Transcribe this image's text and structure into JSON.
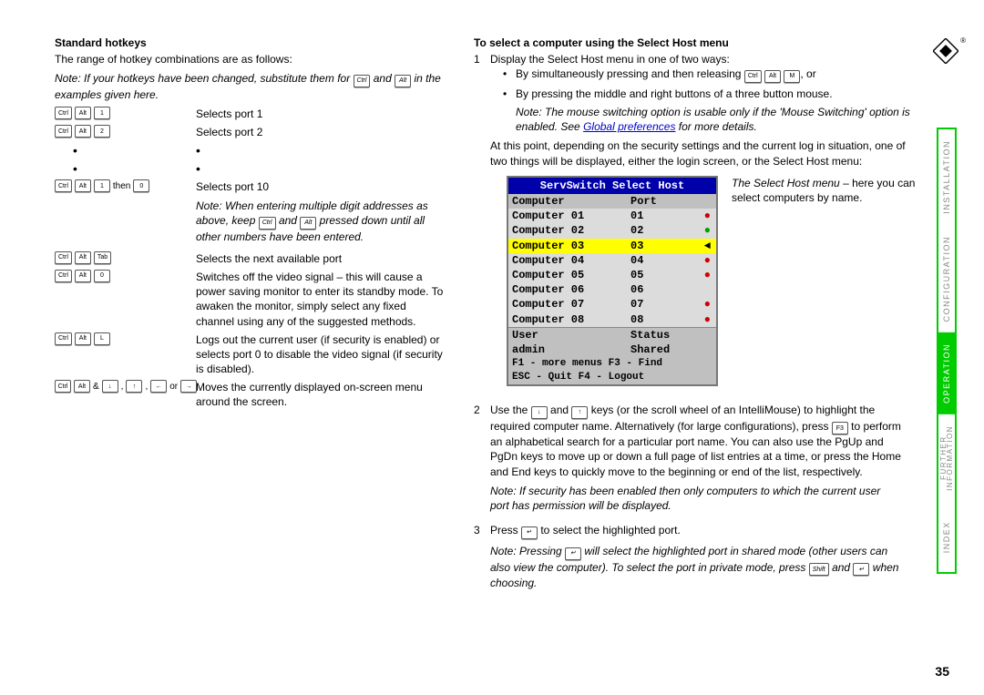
{
  "page_number": "35",
  "sidebar": {
    "tabs": [
      "INSTALLATION",
      "CONFIGURATION",
      "OPERATION",
      "FURTHER INFORMATION",
      "INDEX"
    ],
    "active_index": 2,
    "border_color": "#00cc00",
    "active_bg": "#00cc00"
  },
  "logo": {
    "registered": "®"
  },
  "left": {
    "heading": "Standard hotkeys",
    "intro": "The range of hotkey combinations are as follows:",
    "note1_a": "Note: If your hotkeys have been changed, substitute them for ",
    "note1_b": " and ",
    "note1_c": " in the examples given here.",
    "rows": [
      {
        "keys": [
          "Ctrl",
          "Alt",
          "1"
        ],
        "desc": "Selects port 1"
      },
      {
        "keys": [
          "Ctrl",
          "Alt",
          "2"
        ],
        "desc": "Selects port 2"
      }
    ],
    "row10_keys_a": [
      "Ctrl",
      "Alt",
      "1"
    ],
    "row10_then": " then ",
    "row10_keys_b": [
      "0"
    ],
    "row10_desc": "Selects port 10",
    "multi_note": "Note: When entering multiple digit addresses as above, keep Ctrl and Alt pressed down until all other numbers have been entered.",
    "row_tab": {
      "keys": [
        "Ctrl",
        "Alt",
        "Tab"
      ],
      "desc": "Selects the next available port"
    },
    "row_0": {
      "keys": [
        "Ctrl",
        "Alt",
        "0"
      ],
      "desc": "Switches off the video signal – this will cause a power saving monitor to enter its standby mode. To awaken the monitor, simply select any fixed channel using any of the suggested methods."
    },
    "row_L": {
      "keys": [
        "Ctrl",
        "Alt",
        "L"
      ],
      "desc": "Logs out the current user (if security is enabled) or selects port 0 to disable the video signal (if security is disabled)."
    },
    "row_arrows_prefix_a": [
      "Ctrl",
      "Alt"
    ],
    "row_arrows_amp": " & ",
    "row_arrows_keys": [
      "↓",
      "↑",
      "←",
      "→"
    ],
    "row_arrows_sep": ", ",
    "row_arrows_or": " or ",
    "row_arrows_desc": "Moves the currently displayed on-screen menu around the screen."
  },
  "right": {
    "heading": "To select a computer using the Select Host menu",
    "step1_intro": "Display the Select Host menu in one of two ways:",
    "step1_b1_a": "By simultaneously pressing and then releasing ",
    "step1_b1_keys": [
      "Ctrl",
      "Alt",
      "M"
    ],
    "step1_b1_b": ", or",
    "step1_b2": "By pressing the middle and right buttons of a three button mouse.",
    "step1_note_a": "Note: The mouse switching option is usable only if the 'Mouse Switching' option is enabled. See ",
    "step1_note_link": "Global preferences",
    "step1_note_b": " for more details.",
    "step1_para": "At this point, depending on the security settings and the current log in situation, one of two things will be displayed, either the login screen, or the Select Host menu:",
    "menu": {
      "title": "ServSwitch Select Host",
      "header": [
        "Computer",
        "Port"
      ],
      "rows": [
        {
          "name": "Computer 01",
          "port": "01",
          "ind": "●",
          "ind_color": "#d00000"
        },
        {
          "name": "Computer 02",
          "port": "02",
          "ind": "●",
          "ind_color": "#00a000"
        },
        {
          "name": "Computer 03",
          "port": "03",
          "ind": "◄",
          "ind_color": "#000000",
          "selected": true
        },
        {
          "name": "Computer 04",
          "port": "04",
          "ind": "●",
          "ind_color": "#d00000"
        },
        {
          "name": "Computer 05",
          "port": "05",
          "ind": "●",
          "ind_color": "#d00000"
        },
        {
          "name": "Computer 06",
          "port": "06",
          "ind": "",
          "ind_color": ""
        },
        {
          "name": "Computer 07",
          "port": "07",
          "ind": "●",
          "ind_color": "#d00000"
        },
        {
          "name": "Computer 08",
          "port": "08",
          "ind": "●",
          "ind_color": "#d00000"
        }
      ],
      "user_row": [
        "User",
        "Status"
      ],
      "admin_row": [
        "admin",
        "Shared"
      ],
      "footer1": "F1 - more menus  F3 - Find",
      "footer2": "ESC - Quit       F4 - Logout",
      "colors": {
        "title_bg": "#0000aa",
        "title_fg": "#ffffff",
        "body_bg": "#dcdcdc",
        "sel_bg": "#ffff00",
        "hdr_bg": "#c0c0c0"
      }
    },
    "menu_caption_a": "The Select Host menu",
    "menu_caption_b": " – here you can select computers by name.",
    "step2_a": "Use the ",
    "step2_keys1": [
      "↓"
    ],
    "step2_b": " and ",
    "step2_keys2": [
      "↑"
    ],
    "step2_c": " keys (or the scroll wheel of an IntelliMouse) to highlight the required computer name. Alternatively (for large configurations), press ",
    "step2_keys3": [
      "F3"
    ],
    "step2_d": " to perform an alphabetical search for a particular port name. You can also use the PgUp and PgDn keys to move up or down a full page of list entries at a time, or press the Home and End keys to quickly move to the beginning or end of the list, respectively.",
    "step2_note": "Note: If security has been enabled then only computers to which the current user port has permission will be displayed.",
    "step3_a": "Press ",
    "step3_key": [
      "↵"
    ],
    "step3_b": " to select the highlighted port.",
    "step3_note_a": "Note: Pressing ",
    "step3_note_key1": [
      "↵"
    ],
    "step3_note_b": " will select the highlighted port in shared mode (other users can also view the computer). To select the port in private mode, press ",
    "step3_note_key2": [
      "Shift"
    ],
    "step3_note_c": " and ",
    "step3_note_key3": [
      "↵"
    ],
    "step3_note_d": " when choosing."
  }
}
